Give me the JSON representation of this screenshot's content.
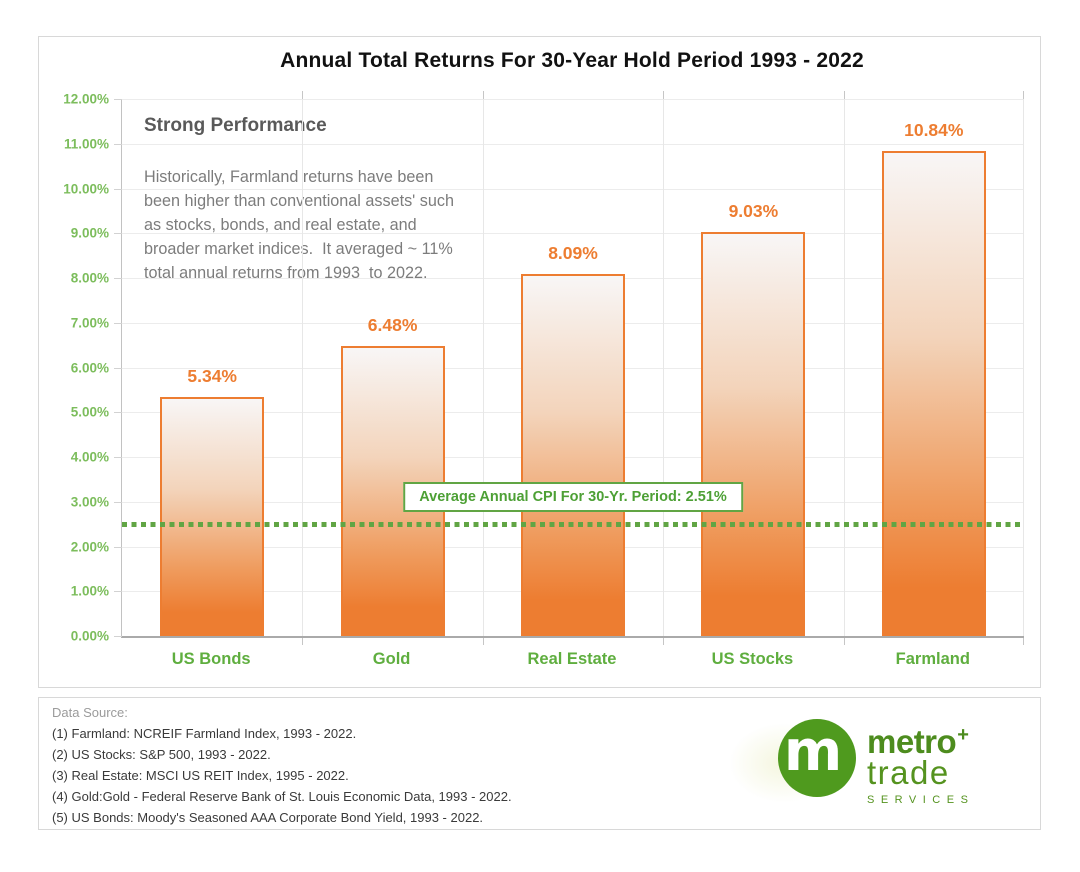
{
  "chart_data": {
    "type": "bar",
    "title": "Annual Total Returns For 30-Year Hold Period 1993 - 2022",
    "categories": [
      "US Bonds",
      "Gold",
      "Real Estate",
      "US Stocks",
      "Farmland"
    ],
    "values": [
      5.34,
      6.48,
      8.09,
      9.03,
      10.84
    ],
    "value_labels": [
      "5.34%",
      "6.48%",
      "8.09%",
      "9.03%",
      "10.84%"
    ],
    "xlabel": "",
    "ylabel": "",
    "ylim": [
      0,
      12
    ],
    "ytick_step": 1,
    "ytick_suffix": "%",
    "grid": true,
    "legend": "none",
    "bar_border_color": "#ED7D31",
    "value_label_color": "#ED7D31",
    "category_label_color": "#5FAE3F",
    "ytick_label_color": "#7CBD5C",
    "reference_line": {
      "value": 2.51,
      "style": "dotted",
      "color": "#61A544",
      "label": "Average Annual CPI For 30-Yr. Period: 2.51%"
    },
    "annotations": {
      "heading": "Strong Performance",
      "body_lines": [
        "Historically, Farmland returns have been",
        "been higher than conventional assets' such",
        "as stocks, bonds, and real estate, and",
        "broader market indices.  It averaged ~ 11%",
        "total annual returns from 1993  to 2022."
      ]
    }
  },
  "footer": {
    "heading": "Data Source:",
    "items": [
      "(1) Farmland: NCREIF Farmland Index, 1993 - 2022.",
      "(2) US Stocks: S&P 500, 1993 - 2022.",
      "(3) Real Estate: MSCI US REIT Index, 1995 - 2022.",
      "(4) Gold:Gold - Federal Reserve Bank of St. Louis Economic Data, 1993 - 2022.",
      "(5) US Bonds: Moody's Seasoned AAA Corporate Bond Yield, 1993 - 2022."
    ]
  },
  "logo": {
    "monogram": "m",
    "name_primary": "metro",
    "name_plus": "+",
    "name_secondary": "trade",
    "tagline": "SERVICES",
    "brand_green": "#4E8D1F"
  }
}
